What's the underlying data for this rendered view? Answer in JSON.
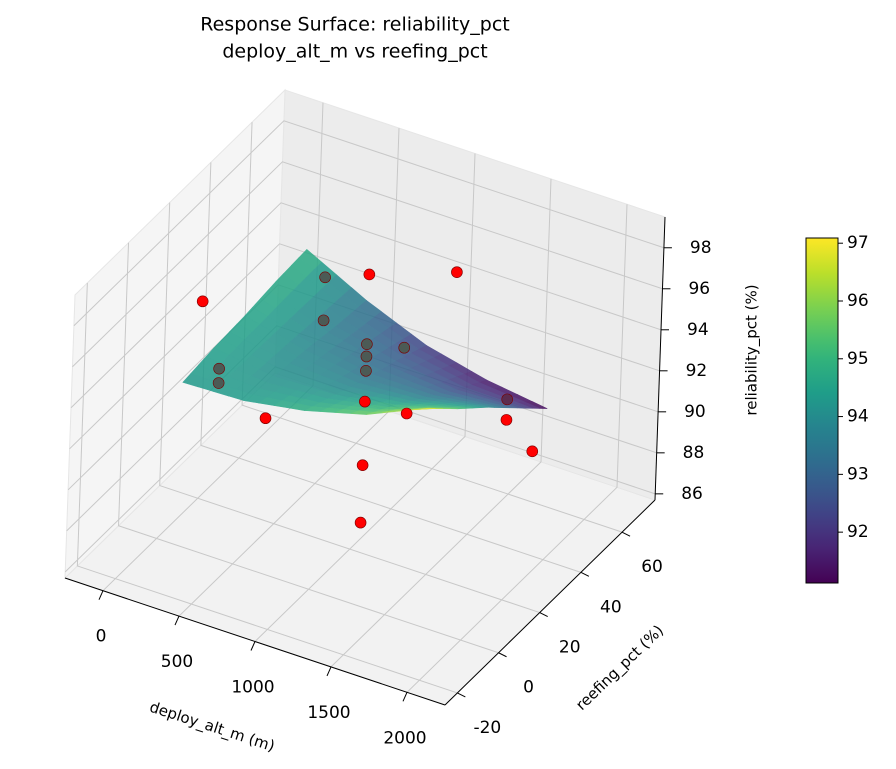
{
  "chart_data": {
    "type": "surface3d",
    "title": [
      "Response Surface: reliability_pct",
      "deploy_alt_m vs reefing_pct"
    ],
    "xlabel": "deploy_alt_m (m)",
    "ylabel": "reefing_pct (%)",
    "zlabel": "reliability_pct (%)",
    "xlim": [
      -250,
      2250
    ],
    "ylim": [
      -26,
      76
    ],
    "zlim": [
      85.7,
      99.5
    ],
    "xticks": [
      0,
      500,
      1000,
      1500,
      2000
    ],
    "yticks": [
      -20,
      0,
      20,
      40,
      60
    ],
    "zticks": [
      86,
      88,
      90,
      92,
      94,
      96,
      98
    ],
    "grid": true,
    "colormap": "viridis",
    "clim": [
      91.12,
      97.09
    ],
    "colorbar_ticks": [
      92,
      93,
      94,
      95,
      96,
      97
    ],
    "surface": {
      "x": [
        200,
        600,
        1000,
        1400,
        1800
      ],
      "y": [
        -5,
        10,
        25,
        40,
        55
      ],
      "z": [
        [
          94.3,
          94.4,
          94.9,
          95.7,
          97.0
        ],
        [
          94.5,
          94.1,
          94.2,
          94.7,
          95.5
        ],
        [
          94.6,
          93.9,
          93.5,
          93.6,
          94.1
        ],
        [
          94.8,
          93.6,
          92.9,
          92.5,
          92.6
        ],
        [
          94.9,
          93.4,
          92.2,
          91.5,
          91.1
        ]
      ]
    },
    "points": {
      "x": [
        0,
        200,
        200,
        875,
        390,
        390,
        1000,
        1000,
        1000,
        1000,
        1000,
        1000,
        1000,
        843,
        1533,
        1000,
        1925,
        1925,
        2100
      ],
      "y": [
        19,
        13,
        13,
        -15,
        50,
        50,
        25,
        25,
        25,
        25,
        25,
        25,
        25,
        56,
        5,
        69,
        25,
        25,
        25
      ],
      "z": [
        95.4,
        93.2,
        92.5,
        95.2,
        94.5,
        92.4,
        98.6,
        95.2,
        94.6,
        93.9,
        92.4,
        89.3,
        86.5,
        91.6,
        95.1,
        94.4,
        94.8,
        93.8,
        92.7
      ],
      "colors": [
        "#ff0000",
        "#4c5a55",
        "#4c5a55",
        "#ff0000",
        "#4c5a55",
        "#4c5a55",
        "#ff0000",
        "#4c5a55",
        "#4c5a55",
        "#4c5a55",
        "#ff0000",
        "#ff0000",
        "#ff0000",
        "#4c5a55",
        "#ff0000",
        "#ff0000",
        "#5b2c4f",
        "#ff0000",
        "#ff0000"
      ]
    }
  }
}
